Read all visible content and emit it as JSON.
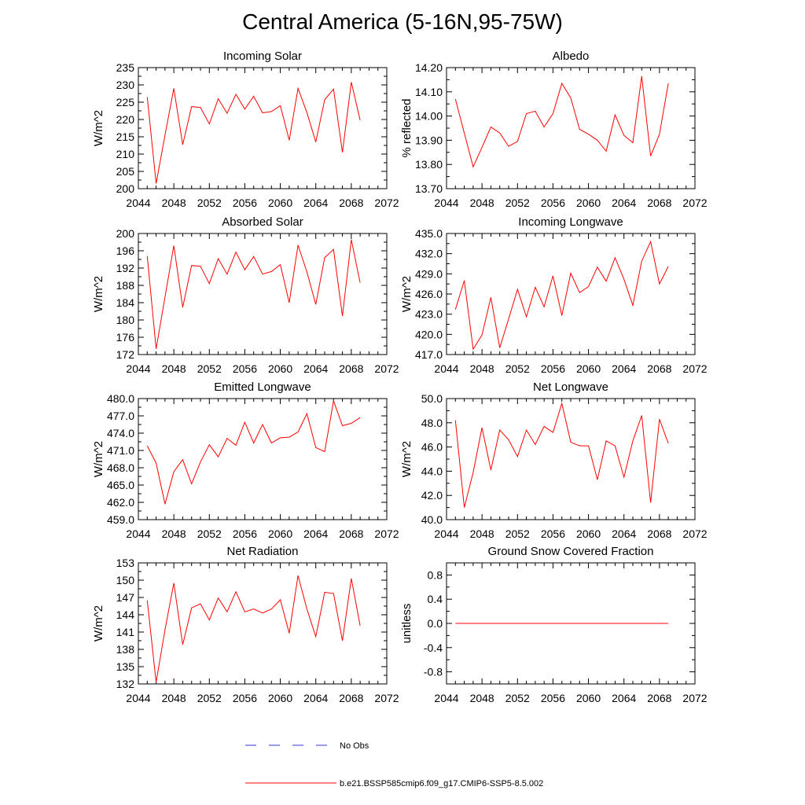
{
  "page": {
    "title": "Central America (5-16N,95-75W)",
    "series_color": "#ff0000",
    "obs_color": "#3333cc"
  },
  "legend": [
    {
      "label": "No Obs",
      "style": "dashed",
      "color": "#3333cc"
    },
    {
      "label": "b.e21.BSSP585cmip6.f09_g17.CMIP6-SSP5-8.5.002",
      "style": "solid",
      "color": "#ff0000"
    }
  ],
  "chart_data": [
    {
      "type": "line",
      "title": "Incoming Solar",
      "ylabel": "W/m^2",
      "xlim": [
        2044,
        2072
      ],
      "xticks": [
        "2044",
        "2048",
        "2052",
        "2056",
        "2060",
        "2064",
        "2068",
        "2072"
      ],
      "ylim": [
        200,
        235
      ],
      "yticks": [
        "200",
        "205",
        "210",
        "215",
        "220",
        "225",
        "230",
        "235"
      ],
      "x": [
        2045,
        2046,
        2047,
        2048,
        2049,
        2050,
        2051,
        2052,
        2053,
        2054,
        2055,
        2056,
        2057,
        2058,
        2059,
        2060,
        2061,
        2062,
        2063,
        2064,
        2065,
        2066,
        2067,
        2068,
        2069
      ],
      "series": [
        {
          "values": [
            226.5,
            201.5,
            215.5,
            229.0,
            212.7,
            223.7,
            223.5,
            218.7,
            226.0,
            221.8,
            227.3,
            223.0,
            226.7,
            221.9,
            222.3,
            224.0,
            214.0,
            229.0,
            222.0,
            213.5,
            225.7,
            228.8,
            210.5,
            230.8,
            219.8
          ]
        }
      ]
    },
    {
      "type": "line",
      "title": "Albedo",
      "ylabel": "% reflected",
      "xlim": [
        2044,
        2072
      ],
      "xticks": [
        "2044",
        "2048",
        "2052",
        "2056",
        "2060",
        "2064",
        "2068",
        "2072"
      ],
      "ylim": [
        13.7,
        14.2
      ],
      "yticks": [
        "13.70",
        "13.80",
        "13.90",
        "14.00",
        "14.10",
        "14.20"
      ],
      "x": [
        2045,
        2046,
        2047,
        2048,
        2049,
        2050,
        2051,
        2052,
        2053,
        2054,
        2055,
        2056,
        2057,
        2058,
        2059,
        2060,
        2061,
        2062,
        2063,
        2064,
        2065,
        2066,
        2067,
        2068,
        2069
      ],
      "series": [
        {
          "values": [
            14.07,
            13.93,
            13.79,
            13.87,
            13.955,
            13.93,
            13.875,
            13.895,
            14.01,
            14.02,
            13.955,
            14.01,
            14.135,
            14.075,
            13.945,
            13.925,
            13.9,
            13.855,
            14.005,
            13.92,
            13.89,
            14.165,
            13.835,
            13.925,
            14.135
          ]
        }
      ]
    },
    {
      "type": "line",
      "title": "Absorbed Solar",
      "ylabel": "W/m^2",
      "xlim": [
        2044,
        2072
      ],
      "xticks": [
        "2044",
        "2048",
        "2052",
        "2056",
        "2060",
        "2064",
        "2068",
        "2072"
      ],
      "ylim": [
        172,
        200
      ],
      "yticks": [
        "172",
        "176",
        "180",
        "184",
        "188",
        "192",
        "196",
        "200"
      ],
      "x": [
        2045,
        2046,
        2047,
        2048,
        2049,
        2050,
        2051,
        2052,
        2053,
        2054,
        2055,
        2056,
        2057,
        2058,
        2059,
        2060,
        2061,
        2062,
        2063,
        2064,
        2065,
        2066,
        2067,
        2068,
        2069
      ],
      "series": [
        {
          "values": [
            194.8,
            173.3,
            185.3,
            197.2,
            182.9,
            192.6,
            192.4,
            188.4,
            194.2,
            190.6,
            195.7,
            191.6,
            194.7,
            190.6,
            191.2,
            192.8,
            184.0,
            197.3,
            191.1,
            183.6,
            194.4,
            196.3,
            180.9,
            198.6,
            188.6
          ]
        }
      ]
    },
    {
      "type": "line",
      "title": "Incoming Longwave",
      "ylabel": "W/m^2",
      "xlim": [
        2044,
        2072
      ],
      "xticks": [
        "2044",
        "2048",
        "2052",
        "2056",
        "2060",
        "2064",
        "2068",
        "2072"
      ],
      "ylim": [
        417,
        435
      ],
      "yticks": [
        "417.0",
        "420.0",
        "423.0",
        "426.0",
        "429.0",
        "432.0",
        "435.0"
      ],
      "x": [
        2045,
        2046,
        2047,
        2048,
        2049,
        2050,
        2051,
        2052,
        2053,
        2054,
        2055,
        2056,
        2057,
        2058,
        2059,
        2060,
        2061,
        2062,
        2063,
        2064,
        2065,
        2066,
        2067,
        2068,
        2069
      ],
      "series": [
        {
          "values": [
            423.7,
            428.0,
            417.8,
            419.9,
            425.5,
            418.0,
            422.3,
            426.7,
            422.6,
            427.0,
            424.1,
            428.7,
            422.8,
            429.1,
            426.2,
            427.1,
            430.0,
            427.9,
            431.4,
            428.2,
            424.3,
            430.9,
            433.8,
            427.5,
            430.1
          ]
        }
      ]
    },
    {
      "type": "line",
      "title": "Emitted Longwave",
      "ylabel": "W/m^2",
      "xlim": [
        2044,
        2072
      ],
      "xticks": [
        "2044",
        "2048",
        "2052",
        "2056",
        "2060",
        "2064",
        "2068",
        "2072"
      ],
      "ylim": [
        459,
        480
      ],
      "yticks": [
        "459.0",
        "462.0",
        "465.0",
        "468.0",
        "471.0",
        "474.0",
        "477.0",
        "480.0"
      ],
      "x": [
        2045,
        2046,
        2047,
        2048,
        2049,
        2050,
        2051,
        2052,
        2053,
        2054,
        2055,
        2056,
        2057,
        2058,
        2059,
        2060,
        2061,
        2062,
        2063,
        2064,
        2065,
        2066,
        2067,
        2068,
        2069
      ],
      "series": [
        {
          "values": [
            471.8,
            468.8,
            461.7,
            467.3,
            469.4,
            465.2,
            469.0,
            472.0,
            469.9,
            473.1,
            471.9,
            475.9,
            472.3,
            475.5,
            472.3,
            473.2,
            473.3,
            474.2,
            477.4,
            471.5,
            470.8,
            479.6,
            475.3,
            475.7,
            476.7
          ]
        }
      ]
    },
    {
      "type": "line",
      "title": "Net Longwave",
      "ylabel": "W/m^2",
      "xlim": [
        2044,
        2072
      ],
      "xticks": [
        "2044",
        "2048",
        "2052",
        "2056",
        "2060",
        "2064",
        "2068",
        "2072"
      ],
      "ylim": [
        40,
        50
      ],
      "yticks": [
        "40.0",
        "42.0",
        "44.0",
        "46.0",
        "48.0",
        "50.0"
      ],
      "x": [
        2045,
        2046,
        2047,
        2048,
        2049,
        2050,
        2051,
        2052,
        2053,
        2054,
        2055,
        2056,
        2057,
        2058,
        2059,
        2060,
        2061,
        2062,
        2063,
        2064,
        2065,
        2066,
        2067,
        2068,
        2069
      ],
      "series": [
        {
          "values": [
            48.2,
            41.0,
            43.9,
            47.6,
            44.1,
            47.4,
            46.6,
            45.2,
            47.4,
            46.2,
            47.7,
            47.2,
            49.6,
            46.4,
            46.1,
            46.1,
            43.3,
            46.5,
            46.1,
            43.5,
            46.5,
            48.6,
            41.4,
            48.3,
            46.3
          ]
        }
      ]
    },
    {
      "type": "line",
      "title": "Net Radiation",
      "ylabel": "W/m^2",
      "xlim": [
        2044,
        2072
      ],
      "xticks": [
        "2044",
        "2048",
        "2052",
        "2056",
        "2060",
        "2064",
        "2068",
        "2072"
      ],
      "ylim": [
        132,
        153
      ],
      "yticks": [
        "132",
        "135",
        "138",
        "141",
        "144",
        "147",
        "150",
        "153"
      ],
      "x": [
        2045,
        2046,
        2047,
        2048,
        2049,
        2050,
        2051,
        2052,
        2053,
        2054,
        2055,
        2056,
        2057,
        2058,
        2059,
        2060,
        2061,
        2062,
        2063,
        2064,
        2065,
        2066,
        2067,
        2068,
        2069
      ],
      "series": [
        {
          "values": [
            146.5,
            132.3,
            141.4,
            149.5,
            138.8,
            145.2,
            145.9,
            143.1,
            146.9,
            144.5,
            148.0,
            144.5,
            145.0,
            144.3,
            145.0,
            146.6,
            140.8,
            150.8,
            145.0,
            140.2,
            147.9,
            147.7,
            139.5,
            150.3,
            142.1
          ]
        }
      ]
    },
    {
      "type": "line",
      "title": "Ground Snow Covered Fraction",
      "ylabel": "unitless",
      "xlim": [
        2044,
        2072
      ],
      "xticks": [
        "2044",
        "2048",
        "2052",
        "2056",
        "2060",
        "2064",
        "2068",
        "2072"
      ],
      "ylim": [
        -1.0,
        1.0
      ],
      "yticks": [
        "-0.8",
        "-0.4",
        "0.0",
        "0.4",
        "0.8"
      ],
      "ytick_values": [
        -0.8,
        -0.4,
        0.0,
        0.4,
        0.8
      ],
      "x": [
        2045,
        2046,
        2047,
        2048,
        2049,
        2050,
        2051,
        2052,
        2053,
        2054,
        2055,
        2056,
        2057,
        2058,
        2059,
        2060,
        2061,
        2062,
        2063,
        2064,
        2065,
        2066,
        2067,
        2068,
        2069
      ],
      "series": [
        {
          "values": [
            0,
            0,
            0,
            0,
            0,
            0,
            0,
            0,
            0,
            0,
            0,
            0,
            0,
            0,
            0,
            0,
            0,
            0,
            0,
            0,
            0,
            0,
            0,
            0,
            0
          ]
        }
      ]
    }
  ]
}
